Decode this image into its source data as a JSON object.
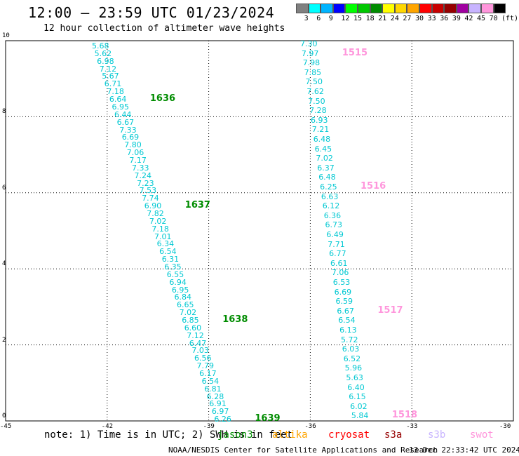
{
  "title": "12:00 – 23:59 UTC 01/23/2024",
  "subtitle": "12 hour collection of altimeter wave heights",
  "legend": {
    "unit": "(ft)",
    "colors": [
      "#808080",
      "#00ffff",
      "#00b4ff",
      "#0000ff",
      "#00ff00",
      "#00c800",
      "#008c00",
      "#ffff00",
      "#ffd700",
      "#ffa500",
      "#ff0000",
      "#c80000",
      "#960000",
      "#a000a0",
      "#c8b4ff",
      "#ff96dc",
      "#000000"
    ],
    "labels": [
      "3",
      "6",
      "9",
      "12",
      "15",
      "18",
      "21",
      "24",
      "27",
      "30",
      "33",
      "36",
      "39",
      "42",
      "45",
      "70"
    ]
  },
  "axes": {
    "x_ticks": [
      "-45",
      "-42",
      "-39",
      "-36",
      "-33",
      "-30"
    ],
    "y_ticks": [
      "0",
      "2",
      "4",
      "6",
      "8",
      "10"
    ]
  },
  "tracks": [
    {
      "color": "#00c8d2",
      "values": [
        "5.68",
        "5.62",
        "6.98",
        "7.12",
        "5.67",
        "6.71",
        "7.18",
        "6.64",
        "6.95",
        "6.44",
        "6.67",
        "7.33",
        "6.69",
        "7.80",
        "7.06",
        "7.17",
        "7.33",
        "7.24",
        "7.23",
        "7.53",
        "7.74",
        "6.90",
        "7.82",
        "7.02",
        "7.18",
        "7.01",
        "6.34",
        "6.54",
        "6.31",
        "6.35",
        "6.55",
        "6.94",
        "6.95",
        "6.84",
        "6.65",
        "7.02",
        "6.85",
        "6.60",
        "7.12",
        "6.47",
        "7.03",
        "6.56",
        "7.79",
        "6.17",
        "6.54",
        "6.81",
        "6.28",
        "6.91",
        "6.97",
        "6.26"
      ],
      "passes": [
        {
          "label": "1636",
          "index": 7
        },
        {
          "label": "1637",
          "index": 21
        },
        {
          "label": "1638",
          "index": 36
        },
        {
          "label": "1639",
          "index": 49
        }
      ],
      "pass_color": "#008c00"
    },
    {
      "color": "#00c8d2",
      "values": [
        "7.30",
        "7.97",
        "7.98",
        "7.85",
        "7.50",
        "7.62",
        "7.50",
        "7.28",
        "6.93",
        "7.21",
        "6.48",
        "6.45",
        "7.02",
        "6.37",
        "6.48",
        "6.25",
        "6.63",
        "6.12",
        "6.36",
        "6.73",
        "6.49",
        "7.71",
        "6.77",
        "6.61",
        "7.06",
        "6.53",
        "6.69",
        "6.59",
        "6.67",
        "6.54",
        "6.13",
        "5.72",
        "6.03",
        "6.52",
        "5.96",
        "5.63",
        "6.40",
        "6.15",
        "6.02",
        "5.84"
      ],
      "passes": [
        {
          "label": "1515",
          "index": 1
        },
        {
          "label": "1516",
          "index": 15
        },
        {
          "label": "1517",
          "index": 28
        },
        {
          "label": "1518",
          "index": 39
        }
      ],
      "pass_color": "#ff96dc"
    }
  ],
  "note": "note: 1) Time is in UTC; 2) SWH is in feet",
  "satellites": [
    {
      "name": "jason3",
      "color": "#008c00"
    },
    {
      "name": "altika",
      "color": "#ffa500"
    },
    {
      "name": "cryosat",
      "color": "#ff0000"
    },
    {
      "name": "s3a",
      "color": "#960000"
    },
    {
      "name": "s3b",
      "color": "#c8b4ff"
    },
    {
      "name": "swot",
      "color": "#ff96dc"
    }
  ],
  "credit": "NOAA/NESDIS Center for Satellite Applications and Research",
  "timestamp": "13 Dec 22:33:42 UTC 2024"
}
